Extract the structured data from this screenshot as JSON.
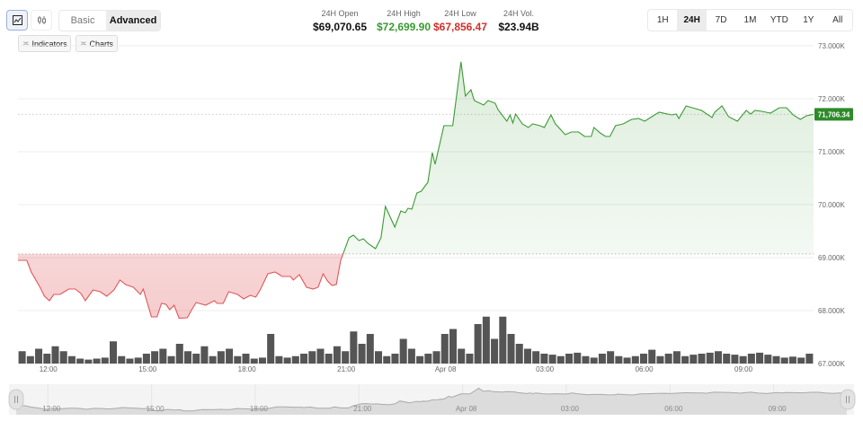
{
  "toolbar": {
    "chart_types": [
      {
        "icon": "line-chart-icon",
        "active": true
      },
      {
        "icon": "candlestick-icon",
        "active": false
      }
    ],
    "modes": [
      {
        "label": "Basic",
        "active": false
      },
      {
        "label": "Advanced",
        "active": true
      }
    ],
    "indicators_label": "Indicators",
    "charts_label": "Charts"
  },
  "stats": [
    {
      "label": "24H Open",
      "value": "$69,070.65",
      "color": "#111111"
    },
    {
      "label": "24H High",
      "value": "$72,699.90",
      "color": "#3a9a32"
    },
    {
      "label": "24H Low",
      "value": "$67,856.47",
      "color": "#d0302c"
    },
    {
      "label": "24H Vol.",
      "value": "$23.94B",
      "color": "#111111"
    }
  ],
  "ranges": [
    {
      "label": "1H",
      "active": false
    },
    {
      "label": "24H",
      "active": true
    },
    {
      "label": "7D",
      "active": false
    },
    {
      "label": "1M",
      "active": false
    },
    {
      "label": "YTD",
      "active": false
    },
    {
      "label": "1Y",
      "active": false
    },
    {
      "label": "All",
      "active": false
    }
  ],
  "colors": {
    "up": "#3c9a36",
    "down": "#e0575a",
    "price_tag": "#2e8a2a",
    "volume": "#555555"
  },
  "chart_data": {
    "type": "line",
    "open": 69070.65,
    "current_price": 71706.34,
    "current_price_label": "71,706.34",
    "ylim": [
      67000,
      73000
    ],
    "y_ticks": [
      "73.000K",
      "72.000K",
      "71.000K",
      "70.000K",
      "69.000K",
      "68.000K",
      "67.000K"
    ],
    "y_tick_values": [
      73000,
      72000,
      71000,
      70000,
      69000,
      68000,
      67000
    ],
    "x_ticks": [
      "12:00",
      "15:00",
      "18:00",
      "21:00",
      "Apr 08",
      "03:00",
      "06:00",
      "09:00"
    ],
    "x_tick_times": [
      "12:00",
      "15:00",
      "18:00",
      "21:00",
      "00:00",
      "03:00",
      "06:00",
      "09:00"
    ],
    "grid": true,
    "points": [
      [
        "11:05",
        68949
      ],
      [
        "11:21",
        68949
      ],
      [
        "11:29",
        68729
      ],
      [
        "11:45",
        68440
      ],
      [
        "11:53",
        68271
      ],
      [
        "12:02",
        68186
      ],
      [
        "12:10",
        68305
      ],
      [
        "12:21",
        68305
      ],
      [
        "12:29",
        68356
      ],
      [
        "12:37",
        68406
      ],
      [
        "12:49",
        68406
      ],
      [
        "12:59",
        68322
      ],
      [
        "13:07",
        68186
      ],
      [
        "13:21",
        68390
      ],
      [
        "13:34",
        68356
      ],
      [
        "13:46",
        68271
      ],
      [
        "13:59",
        68390
      ],
      [
        "14:10",
        68576
      ],
      [
        "14:20",
        68491
      ],
      [
        "14:34",
        68440
      ],
      [
        "14:47",
        68305
      ],
      [
        "14:52",
        68406
      ],
      [
        "15:07",
        67881
      ],
      [
        "15:17",
        67881
      ],
      [
        "15:25",
        68135
      ],
      [
        "15:33",
        68118
      ],
      [
        "15:40",
        68017
      ],
      [
        "15:48",
        68101
      ],
      [
        "15:57",
        67856
      ],
      [
        "16:12",
        67864
      ],
      [
        "16:20",
        68017
      ],
      [
        "16:28",
        68152
      ],
      [
        "16:45",
        68101
      ],
      [
        "17:01",
        68186
      ],
      [
        "17:06",
        68135
      ],
      [
        "17:17",
        68135
      ],
      [
        "17:27",
        68356
      ],
      [
        "17:43",
        68305
      ],
      [
        "17:54",
        68220
      ],
      [
        "18:06",
        68288
      ],
      [
        "18:16",
        68254
      ],
      [
        "18:24",
        68390
      ],
      [
        "18:38",
        68695
      ],
      [
        "18:51",
        68729
      ],
      [
        "19:04",
        68644
      ],
      [
        "19:19",
        68644
      ],
      [
        "19:24",
        68576
      ],
      [
        "19:35",
        68678
      ],
      [
        "19:48",
        68440
      ],
      [
        "20:00",
        68406
      ],
      [
        "20:09",
        68440
      ],
      [
        "20:18",
        68695
      ],
      [
        "20:26",
        68559
      ],
      [
        "20:34",
        68474
      ],
      [
        "20:42",
        68491
      ],
      [
        "20:50",
        68949
      ],
      [
        "21:05",
        69373
      ],
      [
        "21:13",
        69424
      ],
      [
        "21:23",
        69322
      ],
      [
        "21:31",
        69356
      ],
      [
        "21:39",
        69271
      ],
      [
        "21:53",
        69169
      ],
      [
        "22:03",
        69373
      ],
      [
        "22:11",
        69966
      ],
      [
        "22:28",
        69576
      ],
      [
        "22:39",
        69881
      ],
      [
        "22:47",
        69847
      ],
      [
        "22:52",
        69932
      ],
      [
        "22:59",
        69915
      ],
      [
        "23:08",
        70220
      ],
      [
        "23:16",
        70254
      ],
      [
        "23:28",
        70424
      ],
      [
        "23:36",
        70983
      ],
      [
        "23:41",
        70763
      ],
      [
        "23:57",
        71491
      ],
      [
        "00:13",
        71491
      ],
      [
        "00:28",
        72699
      ],
      [
        "00:36",
        72051
      ],
      [
        "00:46",
        72169
      ],
      [
        "00:52",
        71966
      ],
      [
        "01:09",
        71881
      ],
      [
        "01:17",
        71966
      ],
      [
        "01:30",
        71915
      ],
      [
        "01:35",
        71797
      ],
      [
        "01:51",
        71576
      ],
      [
        "01:57",
        71695
      ],
      [
        "02:02",
        71542
      ],
      [
        "02:07",
        71712
      ],
      [
        "02:19",
        71525
      ],
      [
        "02:30",
        71458
      ],
      [
        "02:38",
        71525
      ],
      [
        "02:51",
        71491
      ],
      [
        "02:59",
        71458
      ],
      [
        "03:11",
        71695
      ],
      [
        "03:19",
        71525
      ],
      [
        "03:37",
        71322
      ],
      [
        "03:48",
        71373
      ],
      [
        "04:01",
        71373
      ],
      [
        "04:12",
        71288
      ],
      [
        "04:24",
        71288
      ],
      [
        "04:29",
        71458
      ],
      [
        "04:40",
        71356
      ],
      [
        "04:50",
        71288
      ],
      [
        "04:58",
        71288
      ],
      [
        "05:08",
        71491
      ],
      [
        "05:22",
        71525
      ],
      [
        "05:37",
        71610
      ],
      [
        "05:50",
        71627
      ],
      [
        "06:01",
        71576
      ],
      [
        "06:19",
        71695
      ],
      [
        "06:27",
        71746
      ],
      [
        "06:50",
        71695
      ],
      [
        "06:58",
        71712
      ],
      [
        "07:03",
        71627
      ],
      [
        "07:16",
        71864
      ],
      [
        "07:27",
        71830
      ],
      [
        "07:44",
        71780
      ],
      [
        "08:03",
        71644
      ],
      [
        "08:08",
        71746
      ],
      [
        "08:21",
        71864
      ],
      [
        "08:33",
        71661
      ],
      [
        "08:49",
        71576
      ],
      [
        "09:05",
        71780
      ],
      [
        "09:13",
        71712
      ],
      [
        "09:21",
        71780
      ],
      [
        "09:33",
        71763
      ],
      [
        "09:49",
        71729
      ],
      [
        "10:05",
        71830
      ],
      [
        "10:18",
        71830
      ],
      [
        "10:30",
        71695
      ],
      [
        "10:43",
        71610
      ],
      [
        "10:54",
        71678
      ],
      [
        "11:07",
        71706
      ]
    ],
    "volume_relative": [
      25,
      15,
      30,
      20,
      35,
      25,
      15,
      10,
      8,
      10,
      12,
      45,
      15,
      10,
      12,
      20,
      25,
      30,
      15,
      40,
      25,
      20,
      35,
      15,
      25,
      30,
      15,
      20,
      10,
      12,
      60,
      15,
      12,
      15,
      20,
      25,
      30,
      20,
      35,
      25,
      65,
      40,
      60,
      25,
      15,
      20,
      50,
      30,
      15,
      20,
      25,
      60,
      70,
      30,
      20,
      80,
      95,
      50,
      95,
      60,
      40,
      30,
      25,
      20,
      18,
      15,
      20,
      22,
      15,
      12,
      20,
      25,
      15,
      12,
      15,
      20,
      28,
      15,
      20,
      25,
      15,
      18,
      20,
      22,
      25,
      20,
      18,
      15,
      20,
      22,
      18,
      15,
      12,
      14,
      12,
      20
    ]
  }
}
